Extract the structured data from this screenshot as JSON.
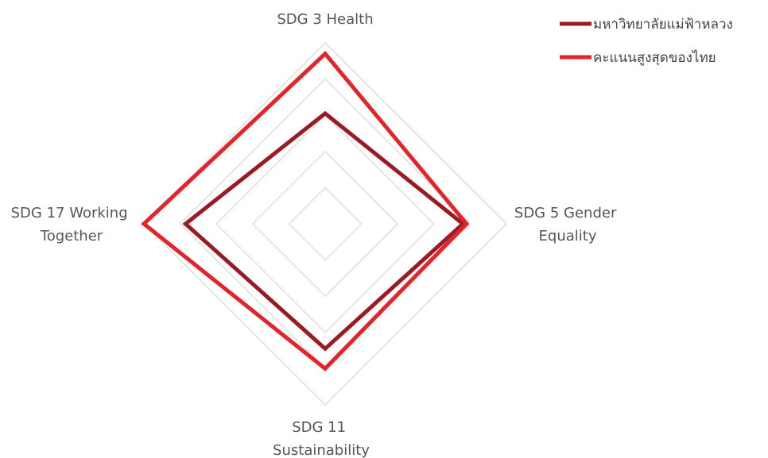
{
  "chart_data": {
    "type": "radar",
    "axes": [
      "SDG 3 Health",
      "SDG 5 Gender Equality",
      "SDG 11 Sustainability",
      "SDG 17 Working Together"
    ],
    "axis_label_lines": [
      [
        "SDG 3 Health"
      ],
      [
        "SDG 5 Gender",
        "Equality"
      ],
      [
        "SDG 11",
        "Sustainability"
      ],
      [
        "SDG 17 Working",
        "Together"
      ]
    ],
    "range": [
      0,
      100
    ],
    "grid_levels": [
      20,
      40,
      60,
      80,
      100
    ],
    "series": [
      {
        "name": "มหาวิทยาลัยแม่ฟ้าหลวง",
        "color": "#9b1b24",
        "values": [
          61,
          76,
          69,
          77
        ]
      },
      {
        "name": "คะแนนสูงสุดของไทย",
        "color": "#e3242b",
        "values": [
          94,
          78,
          80,
          100
        ]
      }
    ],
    "legend_position": "top-right",
    "grid_color": "#e6e6e6"
  }
}
